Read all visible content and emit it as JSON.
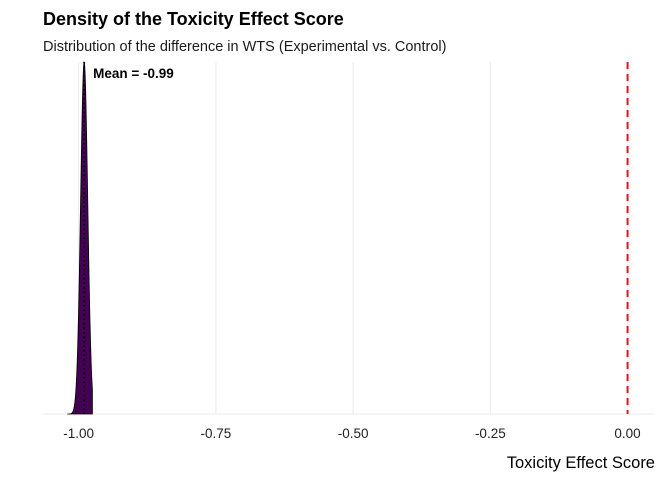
{
  "chart_data": {
    "type": "area",
    "title": "Density of the Toxicity Effect Score",
    "subtitle": "Distribution of the difference in WTS (Experimental vs. Control)",
    "xlabel": "Toxicity Effect Score",
    "ylabel": "",
    "xlim": [
      -1.065,
      0.05
    ],
    "x_ticks": [
      -1.0,
      -0.75,
      -0.5,
      -0.25,
      0.0
    ],
    "x_tick_labels": [
      "-1.00",
      "-0.75",
      "-0.50",
      "-0.25",
      "0.00"
    ],
    "density": {
      "mean": -0.99,
      "sd": 0.0065,
      "min": -1.02,
      "max": -0.975
    },
    "fill_color": "#440154",
    "mean_line": {
      "x": -0.99,
      "style": "dotted",
      "color": "#000000"
    },
    "mean_label": "Mean = -0.99",
    "reference_line": {
      "x": 0.0,
      "style": "dashed",
      "color": "#d7191c"
    },
    "grid": {
      "vertical": true,
      "horizontal": false
    },
    "legend": "none"
  }
}
